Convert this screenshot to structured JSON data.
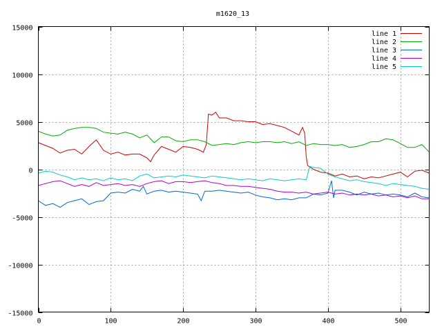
{
  "chart_data": {
    "type": "line",
    "title": "m1620_13",
    "xlabel": "",
    "ylabel": "",
    "xlim": [
      0,
      540
    ],
    "ylim": [
      -15000,
      15000
    ],
    "xticks": [
      0,
      100,
      200,
      300,
      400,
      500
    ],
    "yticks": [
      -15000,
      -10000,
      -5000,
      0,
      5000,
      10000,
      15000
    ],
    "grid": true,
    "legend_position": "top-right",
    "series": [
      {
        "name": "line 1",
        "color": "#cc0000",
        "points": [
          [
            0,
            2800
          ],
          [
            10,
            2500
          ],
          [
            20,
            2200
          ],
          [
            30,
            1700
          ],
          [
            40,
            2000
          ],
          [
            50,
            2100
          ],
          [
            60,
            1600
          ],
          [
            70,
            2400
          ],
          [
            80,
            3100
          ],
          [
            90,
            2000
          ],
          [
            100,
            1600
          ],
          [
            110,
            1800
          ],
          [
            120,
            1500
          ],
          [
            130,
            1600
          ],
          [
            140,
            1600
          ],
          [
            150,
            1200
          ],
          [
            155,
            800
          ],
          [
            160,
            1500
          ],
          [
            170,
            2400
          ],
          [
            180,
            2100
          ],
          [
            190,
            1800
          ],
          [
            200,
            2400
          ],
          [
            210,
            2300
          ],
          [
            220,
            2100
          ],
          [
            228,
            1800
          ],
          [
            232,
            2600
          ],
          [
            235,
            5800
          ],
          [
            240,
            5700
          ],
          [
            245,
            6000
          ],
          [
            250,
            5400
          ],
          [
            260,
            5400
          ],
          [
            270,
            5100
          ],
          [
            280,
            5100
          ],
          [
            290,
            5000
          ],
          [
            300,
            5000
          ],
          [
            310,
            4700
          ],
          [
            320,
            4800
          ],
          [
            330,
            4600
          ],
          [
            340,
            4400
          ],
          [
            350,
            4000
          ],
          [
            360,
            3600
          ],
          [
            365,
            4400
          ],
          [
            368,
            3800
          ],
          [
            370,
            1400
          ],
          [
            372,
            400
          ],
          [
            380,
            0
          ],
          [
            390,
            -300
          ],
          [
            400,
            -400
          ],
          [
            410,
            -700
          ],
          [
            420,
            -500
          ],
          [
            430,
            -800
          ],
          [
            440,
            -700
          ],
          [
            450,
            -1000
          ],
          [
            460,
            -800
          ],
          [
            470,
            -900
          ],
          [
            480,
            -700
          ],
          [
            490,
            -500
          ],
          [
            500,
            -300
          ],
          [
            510,
            -800
          ],
          [
            520,
            -200
          ],
          [
            530,
            -100
          ],
          [
            540,
            -400
          ]
        ]
      },
      {
        "name": "line 2",
        "color": "#00aa00",
        "points": [
          [
            0,
            4000
          ],
          [
            10,
            3700
          ],
          [
            20,
            3500
          ],
          [
            30,
            3600
          ],
          [
            40,
            4100
          ],
          [
            50,
            4300
          ],
          [
            60,
            4400
          ],
          [
            70,
            4400
          ],
          [
            80,
            4300
          ],
          [
            90,
            3900
          ],
          [
            100,
            3800
          ],
          [
            110,
            3700
          ],
          [
            120,
            3900
          ],
          [
            130,
            3700
          ],
          [
            140,
            3300
          ],
          [
            150,
            3600
          ],
          [
            160,
            2800
          ],
          [
            170,
            3400
          ],
          [
            180,
            3400
          ],
          [
            190,
            3000
          ],
          [
            200,
            2900
          ],
          [
            210,
            3100
          ],
          [
            220,
            3100
          ],
          [
            230,
            2900
          ],
          [
            240,
            2500
          ],
          [
            250,
            2600
          ],
          [
            260,
            2700
          ],
          [
            270,
            2600
          ],
          [
            280,
            2800
          ],
          [
            290,
            2900
          ],
          [
            300,
            2800
          ],
          [
            310,
            2900
          ],
          [
            320,
            2900
          ],
          [
            330,
            2800
          ],
          [
            340,
            2900
          ],
          [
            350,
            2700
          ],
          [
            360,
            2900
          ],
          [
            370,
            2500
          ],
          [
            380,
            2700
          ],
          [
            390,
            2600
          ],
          [
            400,
            2600
          ],
          [
            410,
            2500
          ],
          [
            420,
            2600
          ],
          [
            430,
            2300
          ],
          [
            440,
            2400
          ],
          [
            450,
            2600
          ],
          [
            460,
            2900
          ],
          [
            470,
            2900
          ],
          [
            480,
            3200
          ],
          [
            490,
            3100
          ],
          [
            500,
            2700
          ],
          [
            510,
            2300
          ],
          [
            520,
            2300
          ],
          [
            530,
            2600
          ],
          [
            540,
            1800
          ]
        ]
      },
      {
        "name": "line 3",
        "color": "#0066cc",
        "points": [
          [
            0,
            -3300
          ],
          [
            10,
            -3800
          ],
          [
            20,
            -3600
          ],
          [
            30,
            -4000
          ],
          [
            40,
            -3500
          ],
          [
            50,
            -3300
          ],
          [
            60,
            -3100
          ],
          [
            70,
            -3700
          ],
          [
            80,
            -3400
          ],
          [
            90,
            -3300
          ],
          [
            100,
            -2500
          ],
          [
            110,
            -2400
          ],
          [
            120,
            -2500
          ],
          [
            130,
            -2100
          ],
          [
            140,
            -2300
          ],
          [
            145,
            -1800
          ],
          [
            150,
            -2600
          ],
          [
            160,
            -2300
          ],
          [
            170,
            -2200
          ],
          [
            180,
            -2400
          ],
          [
            190,
            -2300
          ],
          [
            200,
            -2400
          ],
          [
            210,
            -2500
          ],
          [
            220,
            -2600
          ],
          [
            225,
            -3300
          ],
          [
            230,
            -2300
          ],
          [
            240,
            -2300
          ],
          [
            250,
            -2200
          ],
          [
            260,
            -2300
          ],
          [
            270,
            -2400
          ],
          [
            280,
            -2500
          ],
          [
            290,
            -2400
          ],
          [
            300,
            -2700
          ],
          [
            310,
            -2900
          ],
          [
            320,
            -3000
          ],
          [
            330,
            -3200
          ],
          [
            340,
            -3100
          ],
          [
            350,
            -3200
          ],
          [
            360,
            -3000
          ],
          [
            370,
            -3000
          ],
          [
            380,
            -2600
          ],
          [
            390,
            -2700
          ],
          [
            400,
            -2500
          ],
          [
            405,
            -1200
          ],
          [
            408,
            -3000
          ],
          [
            410,
            -2200
          ],
          [
            420,
            -2200
          ],
          [
            430,
            -2400
          ],
          [
            440,
            -2700
          ],
          [
            450,
            -2400
          ],
          [
            460,
            -2600
          ],
          [
            470,
            -2500
          ],
          [
            480,
            -2700
          ],
          [
            490,
            -2600
          ],
          [
            500,
            -2700
          ],
          [
            510,
            -2900
          ],
          [
            520,
            -2500
          ],
          [
            530,
            -2900
          ],
          [
            540,
            -3000
          ]
        ]
      },
      {
        "name": "line 4",
        "color": "#aa00cc",
        "points": [
          [
            0,
            -1700
          ],
          [
            10,
            -1500
          ],
          [
            20,
            -1300
          ],
          [
            30,
            -1200
          ],
          [
            40,
            -1500
          ],
          [
            50,
            -1800
          ],
          [
            60,
            -1600
          ],
          [
            70,
            -1800
          ],
          [
            80,
            -1400
          ],
          [
            90,
            -1700
          ],
          [
            100,
            -1600
          ],
          [
            110,
            -1500
          ],
          [
            120,
            -1700
          ],
          [
            130,
            -1600
          ],
          [
            140,
            -1800
          ],
          [
            150,
            -1500
          ],
          [
            160,
            -1300
          ],
          [
            170,
            -1200
          ],
          [
            180,
            -1500
          ],
          [
            190,
            -1300
          ],
          [
            200,
            -1300
          ],
          [
            210,
            -1400
          ],
          [
            220,
            -1300
          ],
          [
            230,
            -1200
          ],
          [
            240,
            -1400
          ],
          [
            250,
            -1500
          ],
          [
            260,
            -1700
          ],
          [
            270,
            -1700
          ],
          [
            280,
            -1800
          ],
          [
            290,
            -1800
          ],
          [
            300,
            -1900
          ],
          [
            310,
            -2000
          ],
          [
            320,
            -2100
          ],
          [
            330,
            -2300
          ],
          [
            340,
            -2400
          ],
          [
            350,
            -2400
          ],
          [
            360,
            -2500
          ],
          [
            370,
            -2400
          ],
          [
            380,
            -2600
          ],
          [
            390,
            -2500
          ],
          [
            400,
            -2400
          ],
          [
            410,
            -2600
          ],
          [
            420,
            -2500
          ],
          [
            430,
            -2700
          ],
          [
            440,
            -2600
          ],
          [
            450,
            -2700
          ],
          [
            460,
            -2600
          ],
          [
            470,
            -2800
          ],
          [
            480,
            -2700
          ],
          [
            490,
            -2900
          ],
          [
            500,
            -2800
          ],
          [
            510,
            -3000
          ],
          [
            520,
            -2800
          ],
          [
            530,
            -3100
          ],
          [
            540,
            -3100
          ]
        ]
      },
      {
        "name": "line 5",
        "color": "#00cccc",
        "points": [
          [
            0,
            -400
          ],
          [
            10,
            -200
          ],
          [
            20,
            -300
          ],
          [
            30,
            -600
          ],
          [
            40,
            -800
          ],
          [
            50,
            -1100
          ],
          [
            60,
            -900
          ],
          [
            70,
            -1100
          ],
          [
            80,
            -1000
          ],
          [
            90,
            -1200
          ],
          [
            100,
            -900
          ],
          [
            110,
            -1100
          ],
          [
            120,
            -1000
          ],
          [
            130,
            -1200
          ],
          [
            140,
            -700
          ],
          [
            150,
            -500
          ],
          [
            160,
            -900
          ],
          [
            170,
            -800
          ],
          [
            180,
            -700
          ],
          [
            190,
            -800
          ],
          [
            200,
            -600
          ],
          [
            210,
            -700
          ],
          [
            220,
            -800
          ],
          [
            230,
            -900
          ],
          [
            240,
            -700
          ],
          [
            250,
            -800
          ],
          [
            260,
            -900
          ],
          [
            270,
            -1000
          ],
          [
            280,
            -1100
          ],
          [
            290,
            -1000
          ],
          [
            300,
            -1100
          ],
          [
            310,
            -1200
          ],
          [
            320,
            -1000
          ],
          [
            330,
            -1100
          ],
          [
            340,
            -1200
          ],
          [
            350,
            -1100
          ],
          [
            360,
            -1000
          ],
          [
            370,
            -1100
          ],
          [
            375,
            300
          ],
          [
            380,
            200
          ],
          [
            390,
            100
          ],
          [
            400,
            -500
          ],
          [
            410,
            -800
          ],
          [
            420,
            -1000
          ],
          [
            430,
            -1200
          ],
          [
            440,
            -1100
          ],
          [
            450,
            -1300
          ],
          [
            460,
            -1400
          ],
          [
            470,
            -1500
          ],
          [
            480,
            -1700
          ],
          [
            490,
            -1500
          ],
          [
            500,
            -1600
          ],
          [
            510,
            -1700
          ],
          [
            520,
            -1800
          ],
          [
            530,
            -2000
          ],
          [
            540,
            -2100
          ]
        ]
      }
    ]
  }
}
